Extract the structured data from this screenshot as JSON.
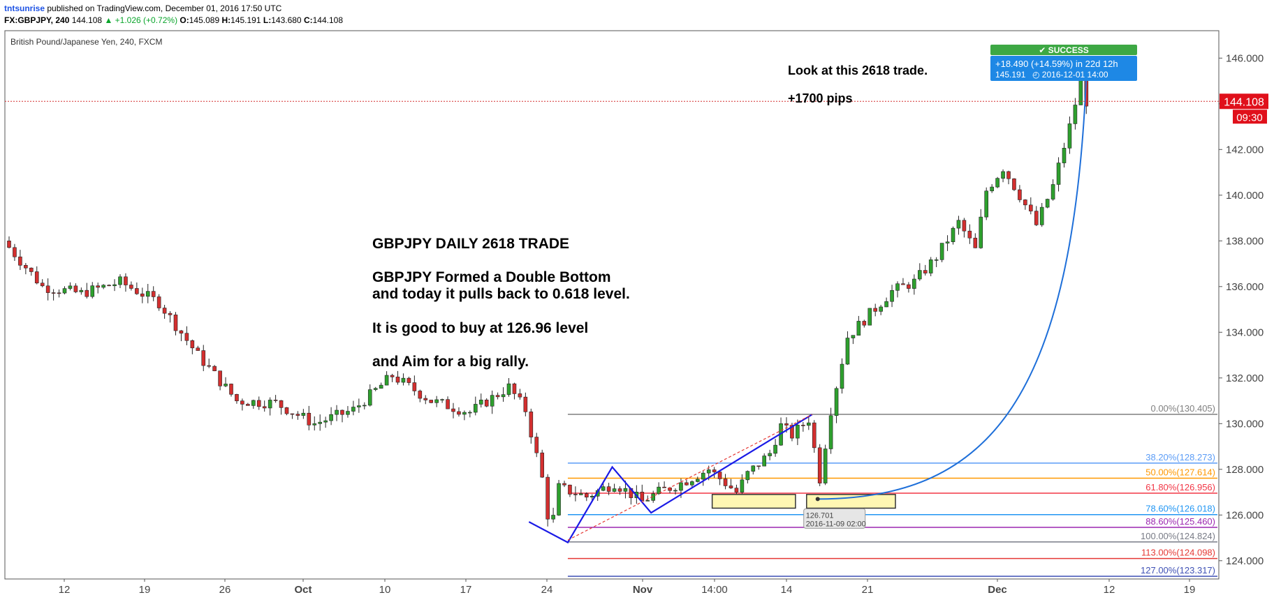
{
  "header": {
    "user": "tntsunrise",
    "published": " published on TradingView.com, December 01, 2016 17:50 UTC",
    "symbol": "FX:GBPJPY, 240",
    "last": "144.108",
    "change": "▲ +1.026 (+0.72%)",
    "o_label": "O:",
    "o": "145.089",
    "h_label": "H:",
    "h": "145.191",
    "l_label": "L:",
    "l": "143.680",
    "c_label": "C:",
    "c": "144.108"
  },
  "chart_data": {
    "type": "candlestick",
    "instrument": "British Pound/Japanese Yen, 240, FXCM",
    "ylim": [
      123.2,
      147.2
    ],
    "y_ticks": [
      124,
      126,
      128,
      130,
      132,
      134,
      136,
      138,
      140,
      142,
      144,
      146
    ],
    "y_tick_labels": [
      "124.000",
      "126.000",
      "128.000",
      "130.000",
      "132.000",
      "134.000",
      "136.000",
      "138.000",
      "140.000",
      "142.000",
      "144.000",
      "146.000"
    ],
    "x_ticks": [
      "12",
      "19",
      "26",
      "Oct",
      "10",
      "17",
      "24",
      "Nov",
      "14:00",
      "14",
      "21",
      "Dec",
      "12",
      "19"
    ],
    "last_price": "144.108",
    "countdown": "09:30",
    "price_path": [
      [
        0,
        138.0
      ],
      [
        7,
        136.0
      ],
      [
        14,
        135.7
      ],
      [
        21,
        136.2
      ],
      [
        28,
        135.3
      ],
      [
        35,
        133.0
      ],
      [
        42,
        131.0
      ],
      [
        49,
        130.9
      ],
      [
        56,
        130.0
      ],
      [
        63,
        130.6
      ],
      [
        70,
        132.1
      ],
      [
        77,
        131.0
      ],
      [
        84,
        130.5
      ],
      [
        91,
        131.6
      ],
      [
        94,
        130.6
      ],
      [
        97,
        127.6
      ],
      [
        98.5,
        125.2
      ],
      [
        100,
        127.2
      ],
      [
        105,
        126.8
      ],
      [
        110,
        127.4
      ],
      [
        115,
        126.6
      ],
      [
        118,
        127.0
      ],
      [
        122,
        127.4
      ],
      [
        127,
        128.0
      ],
      [
        132,
        127.0
      ],
      [
        134,
        127.8
      ],
      [
        138,
        128.7
      ],
      [
        140,
        129.9
      ],
      [
        142,
        129.5
      ],
      [
        145,
        130.2
      ],
      [
        147,
        127.6
      ],
      [
        149,
        130.6
      ],
      [
        152,
        133.8
      ],
      [
        156,
        134.8
      ],
      [
        160,
        135.8
      ],
      [
        164,
        136.2
      ],
      [
        168,
        137.3
      ],
      [
        172,
        138.8
      ],
      [
        175,
        137.6
      ],
      [
        177,
        140.2
      ],
      [
        180,
        141.2
      ],
      [
        183,
        140.0
      ],
      [
        186,
        138.7
      ],
      [
        189,
        140.4
      ],
      [
        192,
        143.0
      ],
      [
        194,
        145.0
      ],
      [
        194.8,
        144.1
      ]
    ],
    "fib_levels": [
      {
        "label": "0.00%(130.405)",
        "value": 130.405,
        "color": "#7f7f7f"
      },
      {
        "label": "38.20%(128.273)",
        "value": 128.273,
        "color": "#5b9cf6"
      },
      {
        "label": "50.00%(127.614)",
        "value": 127.614,
        "color": "#ff9800"
      },
      {
        "label": "61.80%(126.956)",
        "value": 126.956,
        "color": "#f23645"
      },
      {
        "label": "78.60%(126.018)",
        "value": 126.018,
        "color": "#2196f3"
      },
      {
        "label": "88.60%(125.460)",
        "value": 125.46,
        "color": "#9c27b0"
      },
      {
        "label": "100.00%(124.824)",
        "value": 124.824,
        "color": "#787b86"
      },
      {
        "label": "113.00%(124.098)",
        "value": 124.098,
        "color": "#e53935"
      },
      {
        "label": "127.00%(123.317)",
        "value": 123.317,
        "color": "#3f51b5"
      }
    ],
    "zigzag": [
      [
        94,
        125.7
      ],
      [
        101,
        124.8
      ],
      [
        109,
        128.1
      ],
      [
        116,
        126.1
      ],
      [
        145,
        130.4
      ]
    ],
    "trend_dashed": [
      [
        101,
        124.9
      ],
      [
        145,
        130.4
      ]
    ],
    "demand_zones": [
      {
        "x0": 127,
        "x1": 142,
        "y0": 126.3,
        "y1": 126.9
      },
      {
        "x0": 144,
        "x1": 160,
        "y0": 126.3,
        "y1": 126.9
      }
    ],
    "projection_curve": {
      "from": [
        146,
        126.7
      ],
      "to": [
        194,
        145.2
      ]
    },
    "markers": [
      {
        "price": "126.701",
        "time": "2016-11-09 02:00",
        "at": [
          146,
          126.701
        ]
      },
      {
        "status": "✔ SUCCESS",
        "change": "+18.490 (+14.59%) in 22d 12h",
        "price": "145.191",
        "time": "2016-12-01  14:00",
        "at": [
          194,
          145.191
        ]
      }
    ],
    "annotations": {
      "title": "GBPJPY DAILY 2618 TRADE",
      "line1": "GBPJPY Formed a Double Bottom",
      "line2": "and today it pulls back to 0.618 level.",
      "line3": "It is good to buy at 126.96 level",
      "line4": "and Aim for a big rally.",
      "note1": "Look at this 2618 trade.",
      "note2": "+1700 pips"
    }
  }
}
